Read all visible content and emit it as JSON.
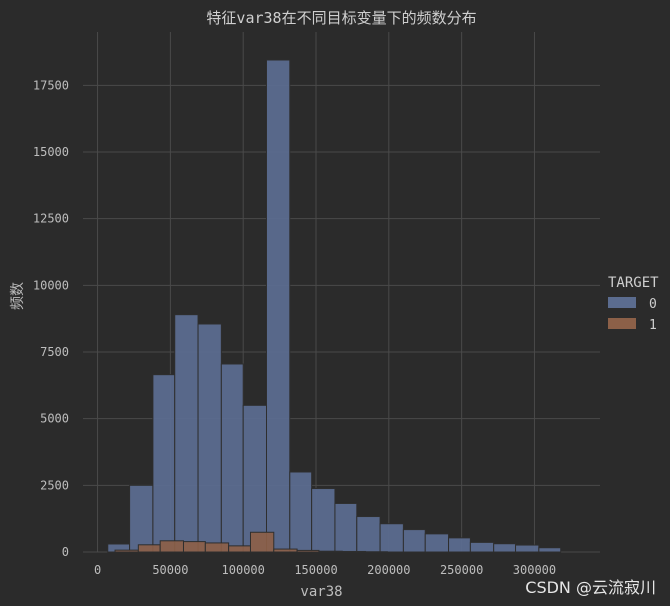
{
  "chart_data": {
    "type": "bar",
    "title": "特征var38在不同目标变量下的频数分布",
    "xlabel": "var38",
    "ylabel": "频数",
    "xlim": [
      -10000,
      345000
    ],
    "ylim": [
      0,
      19500
    ],
    "xticks": [
      0,
      50000,
      100000,
      150000,
      200000,
      250000,
      300000
    ],
    "xtick_labels": [
      "0",
      "50000",
      "100000",
      "150000",
      "200000",
      "250000",
      "300000"
    ],
    "yticks": [
      0,
      2500,
      5000,
      7500,
      10000,
      12500,
      15000,
      17500
    ],
    "ytick_labels": [
      "0",
      "2500",
      "5000",
      "7500",
      "10000",
      "12500",
      "15000",
      "17500"
    ],
    "grid": true,
    "legend": {
      "title": "TARGET",
      "placement": "right",
      "entries": [
        "0",
        "1"
      ]
    },
    "colors": {
      "series0": "#5b6c8f",
      "series1": "#8c6048",
      "background": "#2b2b2b",
      "grid": "#4a4a4a"
    },
    "series": [
      {
        "name": "0",
        "bins": [
          [
            7000,
            22000,
            300
          ],
          [
            22000,
            38000,
            2500
          ],
          [
            38000,
            53000,
            6650
          ],
          [
            53000,
            69000,
            8900
          ],
          [
            69000,
            85000,
            8550
          ],
          [
            85000,
            100000,
            7050
          ],
          [
            100000,
            116000,
            5500
          ],
          [
            116000,
            132000,
            18450
          ],
          [
            132000,
            147000,
            3000
          ],
          [
            147000,
            163000,
            2380
          ],
          [
            163000,
            178000,
            1820
          ],
          [
            178000,
            194000,
            1330
          ],
          [
            194000,
            210000,
            1060
          ],
          [
            210000,
            225000,
            840
          ],
          [
            225000,
            241000,
            680
          ],
          [
            241000,
            256000,
            530
          ],
          [
            256000,
            272000,
            360
          ],
          [
            272000,
            287000,
            310
          ],
          [
            287000,
            303000,
            260
          ],
          [
            303000,
            318000,
            160
          ]
        ]
      },
      {
        "name": "1",
        "bins": [
          [
            12000,
            28000,
            70
          ],
          [
            28000,
            43000,
            270
          ],
          [
            43000,
            59000,
            420
          ],
          [
            59000,
            74000,
            390
          ],
          [
            74000,
            90000,
            340
          ],
          [
            90000,
            105000,
            230
          ],
          [
            105000,
            121000,
            740
          ],
          [
            121000,
            137000,
            110
          ],
          [
            137000,
            152000,
            60
          ],
          [
            152000,
            168000,
            30
          ],
          [
            168000,
            184000,
            20
          ],
          [
            184000,
            199000,
            10
          ]
        ]
      }
    ]
  },
  "watermark": "CSDN @云流寂川"
}
